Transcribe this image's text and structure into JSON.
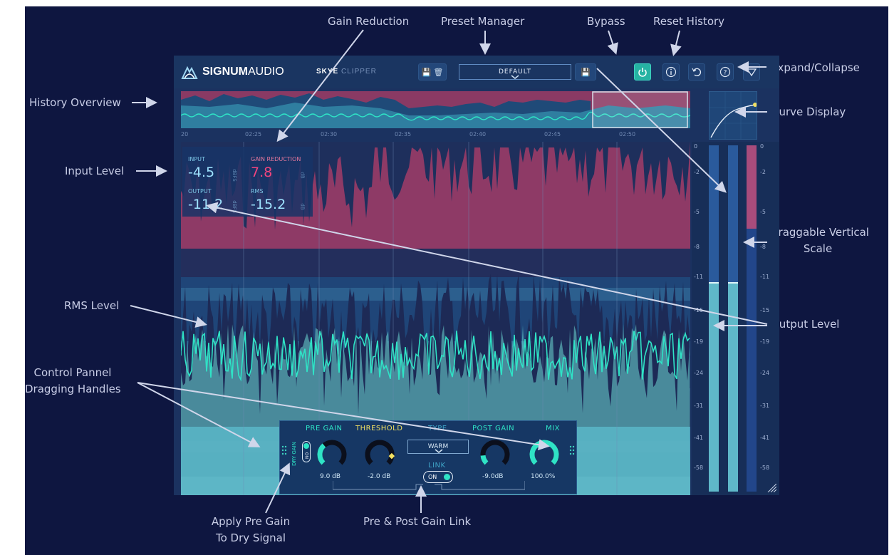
{
  "annotations": {
    "gain_reduction": "Gain Reduction",
    "preset_manager": "Preset Manager",
    "bypass": "Bypass",
    "reset_history": "Reset History",
    "expand_collapse": "Expand/Collapse",
    "history_overview": "History Overview",
    "curve_display": "Curve Display",
    "input_level": "Input Level",
    "draggable_scale_line1": "Draggable Vertical",
    "draggable_scale_line2": "Scale",
    "rms_level": "RMS Level",
    "output_level": "Output Level",
    "control_panel_line1": "Control Pannel",
    "control_panel_line2": "Dragging Handles",
    "apply_pre_gain_line1": "Apply Pre Gain",
    "apply_pre_gain_line2": "To Dry Signal",
    "pre_post_link": "Pre & Post Gain Link"
  },
  "header": {
    "brand_bold": "SIGNUM",
    "brand_light": "AUDIO",
    "product_bold": "SKYE",
    "product_light": "CLIPPER",
    "preset": "DEFAULT"
  },
  "timeline": [
    "20",
    "02:25",
    "02:30",
    "02:35",
    "02:40",
    "02:45",
    "02:50"
  ],
  "readout": {
    "input_label": "INPUT",
    "input_value": "-4.5",
    "input_unit": "dBFS",
    "gr_label": "GAIN REDUCTION",
    "gr_value": "7.8",
    "gr_unit": "dB",
    "output_label": "OUTPUT",
    "output_value": "-11.2",
    "output_unit": "dBFS",
    "rms_label": "RMS",
    "rms_value": "-15.2",
    "rms_unit": "dB"
  },
  "meter_scale": [
    "0",
    "-2",
    "-5",
    "-8",
    "-11",
    "-15",
    "-19",
    "-24",
    "-31",
    "-41",
    "-58"
  ],
  "meter_levels": {
    "gain_reduction_fraction": 0.24,
    "output_fraction": 0.6
  },
  "controls": {
    "dry_gain_label": "DRY GAIN",
    "dry_gain_toggle": "ON",
    "pre_gain_label": "PRE GAIN",
    "pre_gain_value": "9.0 dB",
    "pre_gain_fraction": 0.35,
    "threshold_label": "THRESHOLD",
    "threshold_value": "-2.0 dB",
    "threshold_fraction": 0.86,
    "type_label": "TYPE",
    "type_value": "WARM",
    "link_label": "LINK",
    "link_toggle": "ON",
    "post_gain_label": "POST GAIN",
    "post_gain_value": "-9.0dB",
    "post_gain_fraction": 0.15,
    "mix_label": "MIX",
    "mix_value": "100.0%",
    "mix_fraction": 1.0
  },
  "colors": {
    "accent_teal": "#2fe3c6",
    "gain_reduction_pink": "#f0457e",
    "readout_blue": "#9ee3ff",
    "threshold_yellow": "#f2e163",
    "bypass_active": "#26b3a3"
  }
}
